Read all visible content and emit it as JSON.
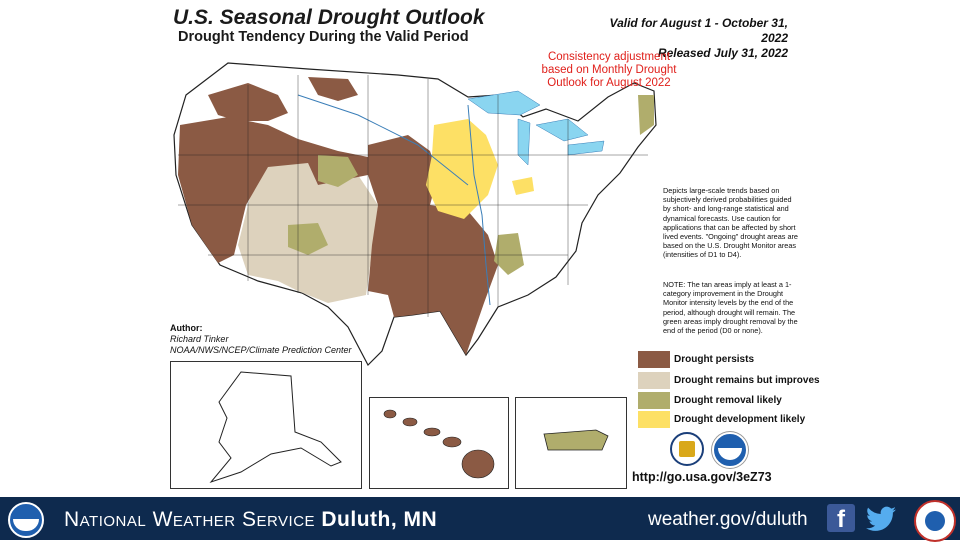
{
  "title": "U.S. Seasonal Drought Outlook",
  "subtitle": "Drought Tendency During the Valid Period",
  "valid_line1": "Valid for August 1 - October 31, 2022",
  "valid_line2": "Released July 31, 2022",
  "consistency_note": "Consistency adjustment based on Monthly Drought Outlook for August 2022",
  "description": "Depicts large-scale trends based on subjectively derived probabilities guided by short- and long-range statistical and dynamical forecasts. Use caution for applications that can be affected by short lived events. \"Ongoing\" drought areas are based on the U.S. Drought Monitor areas (intensities of D1 to D4).",
  "note": "NOTE: The tan areas imply at least a 1-category improvement in the Drought Monitor intensity levels by the end of the period, although drought will remain. The green areas imply drought removal by the end of the period (D0 or none).",
  "author_label": "Author:",
  "author_name": "Richard Tinker",
  "author_org": "NOAA/NWS/NCEP/Climate Prediction Center",
  "legend": [
    {
      "label": "Drought persists",
      "color": "#8b5a44"
    },
    {
      "label": "Drought remains but improves",
      "color": "#ddd2bd"
    },
    {
      "label": "Drought removal likely",
      "color": "#b0ad6c"
    },
    {
      "label": "Drought development likely",
      "color": "#fde065"
    }
  ],
  "url": "http://go.usa.gov/3eZ73",
  "footer": {
    "name_part1": "National Weather Service",
    "name_part2": "Duluth, MN",
    "url": "weather.gov/duluth",
    "bg_color": "#0e2a4e"
  },
  "icons": [
    "noaa-logo-icon",
    "nws-logo-icon",
    "facebook-icon",
    "twitter-icon",
    "usda-seal-icon"
  ]
}
